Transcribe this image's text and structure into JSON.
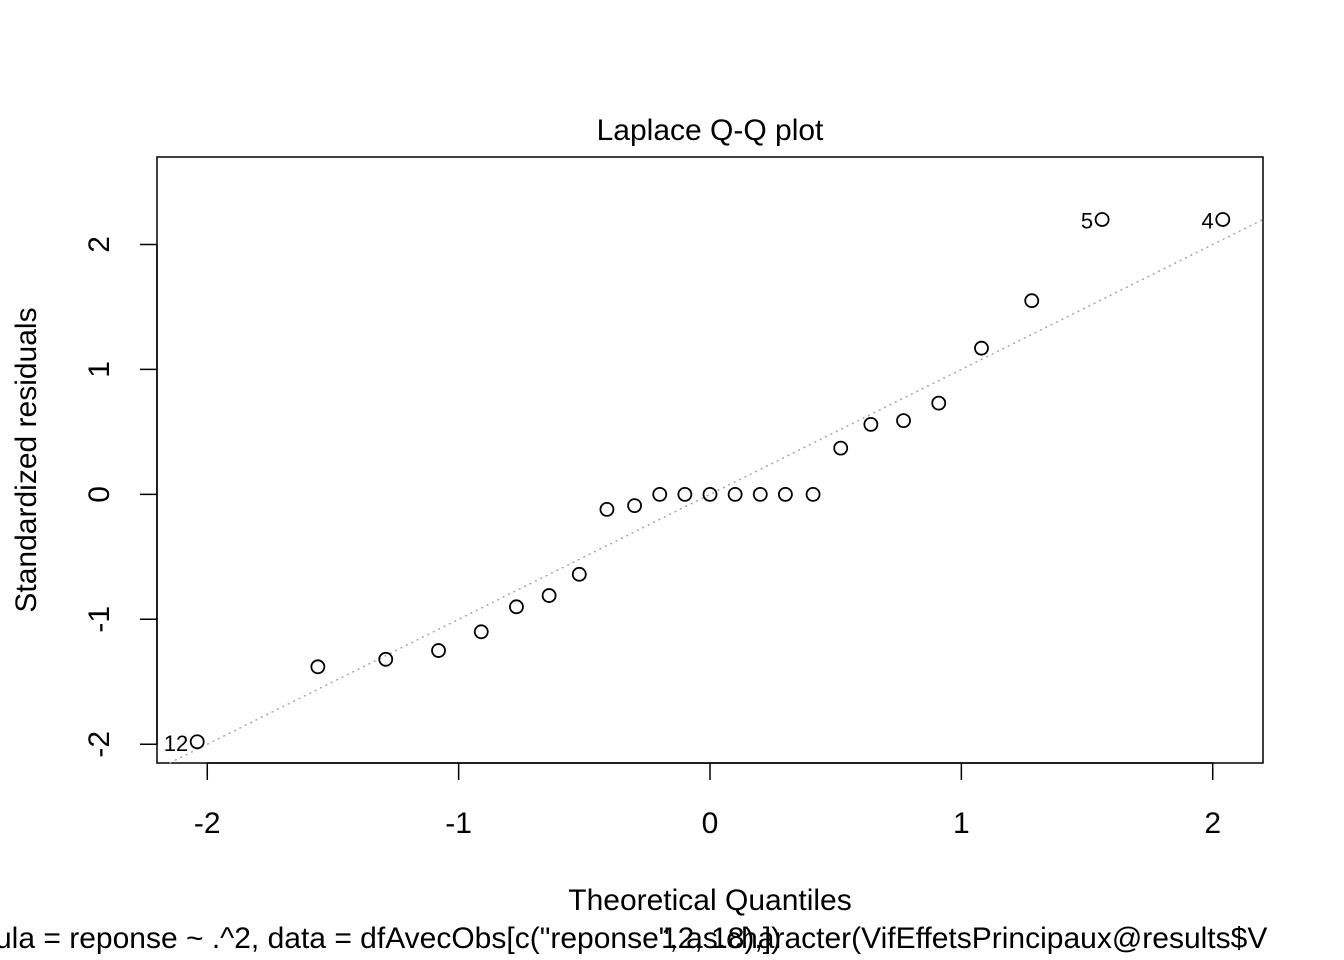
{
  "chart_data": {
    "type": "scatter",
    "title": "Laplace Q-Q plot",
    "xlabel": "Theoretical Quantiles",
    "ylabel": "Standardized residuals",
    "xlim": [
      -2.2,
      2.2
    ],
    "ylim": [
      -2.15,
      2.7
    ],
    "x_ticks": [
      -2,
      -1,
      0,
      1,
      2
    ],
    "x_tick_labels": [
      "-2",
      "-1",
      "0",
      "1",
      "2"
    ],
    "y_ticks": [
      -2,
      -1,
      0,
      1,
      2
    ],
    "y_tick_labels": [
      "-2",
      "-1",
      "0",
      "1",
      "2"
    ],
    "grid": false,
    "legend": "none",
    "reference_line": {
      "intercept": 0,
      "slope": 1,
      "style": "dotted",
      "color": "#a6a6a6"
    },
    "points": [
      {
        "x": -2.04,
        "y": -1.98,
        "label": "12"
      },
      {
        "x": -1.56,
        "y": -1.38
      },
      {
        "x": -1.29,
        "y": -1.32
      },
      {
        "x": -1.08,
        "y": -1.25
      },
      {
        "x": -0.91,
        "y": -1.1
      },
      {
        "x": -0.77,
        "y": -0.9
      },
      {
        "x": -0.64,
        "y": -0.81
      },
      {
        "x": -0.52,
        "y": -0.64
      },
      {
        "x": -0.41,
        "y": -0.12
      },
      {
        "x": -0.3,
        "y": -0.09
      },
      {
        "x": -0.2,
        "y": 0.0
      },
      {
        "x": -0.1,
        "y": 0.0
      },
      {
        "x": 0.0,
        "y": 0.0
      },
      {
        "x": 0.1,
        "y": 0.0
      },
      {
        "x": 0.2,
        "y": 0.0
      },
      {
        "x": 0.3,
        "y": 0.0
      },
      {
        "x": 0.41,
        "y": 0.0
      },
      {
        "x": 0.52,
        "y": 0.37
      },
      {
        "x": 0.64,
        "y": 0.56
      },
      {
        "x": 0.77,
        "y": 0.59
      },
      {
        "x": 0.91,
        "y": 0.73
      },
      {
        "x": 1.08,
        "y": 1.17
      },
      {
        "x": 1.28,
        "y": 1.55
      },
      {
        "x": 1.56,
        "y": 2.2,
        "label": "5"
      },
      {
        "x": 2.04,
        "y": 2.2,
        "label": "4"
      }
    ],
    "subtitle_overlap": {
      "left_text": "ula = reponse ~ .^2, data = dfAvecObs[c(\"reponse\", as.character(VifEffetsPrincipaux@results$V",
      "right_text": "12, 18),])"
    }
  }
}
